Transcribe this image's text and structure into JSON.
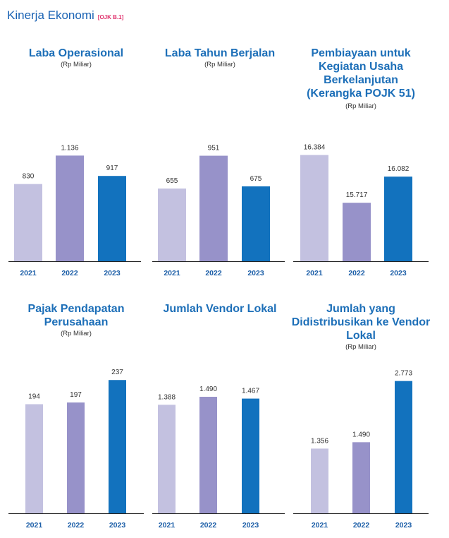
{
  "header": {
    "title": "Kinerja Ekonomi",
    "ref": "[OJK B.1]"
  },
  "colors": {
    "y2021": "#c3c1e0",
    "y2022": "#9792c9",
    "y2023": "#1272be",
    "axis": "#222222"
  },
  "chart_data": [
    {
      "type": "bar",
      "title": "Laba Operasional",
      "unit": "(Rp Miliar)",
      "categories": [
        "2021",
        "2022",
        "2023"
      ],
      "values": [
        830,
        1136,
        917
      ],
      "labels": [
        "830",
        "1.136",
        "917"
      ],
      "ylim": [
        0,
        1670
      ]
    },
    {
      "type": "bar",
      "title": "Laba Tahun Berjalan",
      "unit": "(Rp Miliar)",
      "categories": [
        "2021",
        "2022",
        "2023"
      ],
      "values": [
        655,
        951,
        675
      ],
      "labels": [
        "655",
        "951",
        "675"
      ],
      "ylim": [
        0,
        1400
      ]
    },
    {
      "type": "bar",
      "title": "Pembiayaan untuk\nKegiatan Usaha\nBerkelanjutan\n(Kerangka POJK 51)",
      "unit": "(Rp Miliar)",
      "categories": [
        "2021",
        "2022",
        "2023"
      ],
      "values": [
        16384,
        15717,
        16082
      ],
      "labels": [
        "16.384",
        "15.717",
        "16.082"
      ],
      "ylim": [
        14900,
        17070
      ]
    },
    {
      "type": "bar",
      "title": "Pajak Pendapatan\nPerusahaan",
      "unit": "(Rp Miliar)",
      "categories": [
        "2021",
        "2022",
        "2023"
      ],
      "values": [
        194,
        197,
        237
      ],
      "labels": [
        "194",
        "197",
        "237"
      ],
      "ylim": [
        0,
        285
      ]
    },
    {
      "type": "bar",
      "title": "Jumlah Vendor Lokal",
      "unit": "",
      "categories": [
        "2021",
        "2022",
        "2023"
      ],
      "values": [
        1388,
        1490,
        1467
      ],
      "labels": [
        "1.388",
        "1.490",
        "1.467"
      ],
      "ylim": [
        0,
        2050
      ]
    },
    {
      "type": "bar",
      "title": "Jumlah yang\nDidistribusikan ke Vendor\nLokal",
      "unit": "(Rp Miliar)",
      "categories": [
        "2021",
        "2022",
        "2023"
      ],
      "values": [
        1356,
        1490,
        2773
      ],
      "labels": [
        "1.356",
        "1.490",
        "2.773"
      ],
      "ylim": [
        0,
        3360
      ]
    }
  ]
}
